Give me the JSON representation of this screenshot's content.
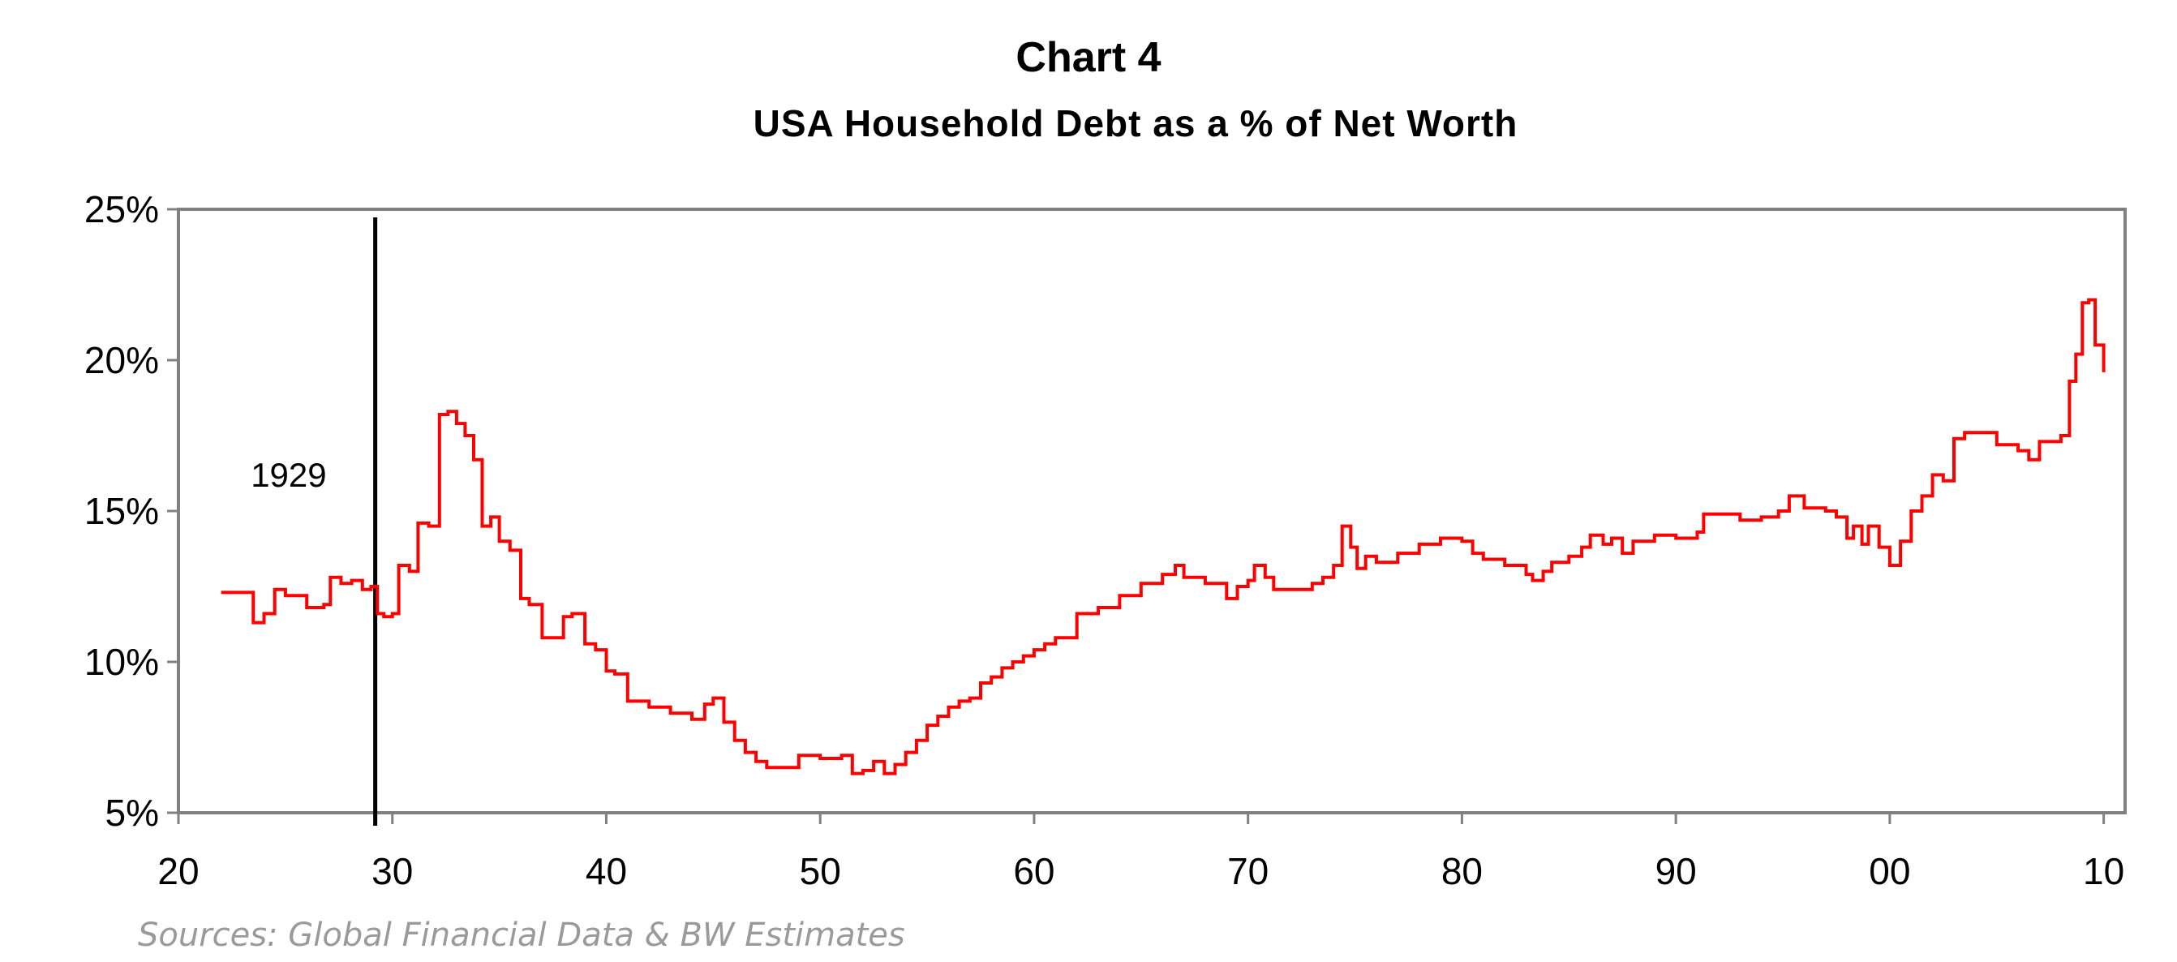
{
  "chart_data": {
    "type": "line",
    "title": "Chart 4",
    "subtitle": "USA Household Debt as a % of Net Worth",
    "xlabel": "",
    "ylabel": "",
    "xlim": [
      1920,
      2011
    ],
    "ylim": [
      5,
      25
    ],
    "x_ticks": [
      1920,
      1930,
      1940,
      1950,
      1960,
      1970,
      1980,
      1990,
      2000,
      2010
    ],
    "x_tick_labels": [
      "20",
      "30",
      "40",
      "50",
      "60",
      "70",
      "80",
      "90",
      "00",
      "10"
    ],
    "y_ticks": [
      5,
      10,
      15,
      20,
      25
    ],
    "y_tick_labels": [
      "5%",
      "10%",
      "15%",
      "20%",
      "25%"
    ],
    "grid": false,
    "legend": "none",
    "annotations": [
      {
        "text": "1929",
        "x": 1929.2
      }
    ],
    "source": "Sources: Global Financial Data & BW Estimates",
    "colors": {
      "series": "#ff0000",
      "axis": "#808080",
      "marker_line": "#000000"
    },
    "series": [
      {
        "x": [
          1922.0,
          1923.0,
          1923.5,
          1924.0,
          1924.5,
          1925.0,
          1926.0,
          1926.8,
          1927.1,
          1927.6,
          1928.1,
          1928.6,
          1929.0,
          1929.3,
          1929.6,
          1930.0,
          1930.3,
          1930.8,
          1931.2,
          1931.7,
          1932.2,
          1932.6,
          1933.0,
          1933.4,
          1933.8,
          1934.2,
          1934.6,
          1935.0,
          1935.5,
          1936.0,
          1936.4,
          1937.0,
          1937.5,
          1938.0,
          1938.4,
          1939.0,
          1939.5,
          1940.0,
          1940.4,
          1941.0,
          1942.0,
          1943.0,
          1944.0,
          1944.6,
          1945.0,
          1945.5,
          1946.0,
          1946.5,
          1947.0,
          1947.5,
          1948.0,
          1948.5,
          1949.0,
          1949.5,
          1950.0,
          1950.5,
          1951.0,
          1951.5,
          1952.0,
          1952.5,
          1953.0,
          1953.5,
          1954.0,
          1954.5,
          1955.0,
          1955.5,
          1956.0,
          1956.5,
          1957.0,
          1957.5,
          1958.0,
          1958.5,
          1959.0,
          1959.5,
          1960.0,
          1960.5,
          1961.0,
          1962.0,
          1963.0,
          1964.0,
          1965.0,
          1966.0,
          1966.6,
          1967.0,
          1968.0,
          1969.0,
          1969.5,
          1970.0,
          1970.3,
          1970.8,
          1971.2,
          1972.0,
          1973.0,
          1973.5,
          1974.0,
          1974.4,
          1974.8,
          1975.1,
          1975.5,
          1976.0,
          1977.0,
          1978.0,
          1979.0,
          1980.0,
          1980.5,
          1981.0,
          1982.0,
          1983.0,
          1983.3,
          1983.8,
          1984.2,
          1985.0,
          1985.6,
          1986.0,
          1986.6,
          1987.0,
          1987.5,
          1988.0,
          1989.0,
          1990.0,
          1991.0,
          1991.3,
          1992.0,
          1993.0,
          1994.0,
          1994.8,
          1995.3,
          1996.0,
          1997.0,
          1997.5,
          1998.0,
          1998.3,
          1998.7,
          1999.0,
          1999.5,
          2000.0,
          2000.5,
          2001.0,
          2001.5,
          2002.0,
          2002.5,
          2003.0,
          2003.5,
          2004.0,
          2005.0,
          2006.0,
          2006.5,
          2007.0,
          2007.5,
          2008.0,
          2008.4,
          2008.7,
          2009.0,
          2009.3,
          2009.6,
          2010.0
        ],
        "y": [
          12.3,
          12.3,
          11.3,
          11.6,
          12.4,
          12.2,
          11.8,
          11.9,
          12.8,
          12.6,
          12.7,
          12.4,
          12.5,
          11.6,
          11.5,
          11.6,
          13.2,
          13.0,
          14.6,
          14.5,
          18.2,
          18.3,
          17.9,
          17.5,
          16.7,
          14.5,
          14.8,
          14.0,
          13.7,
          12.1,
          11.9,
          10.8,
          10.8,
          11.5,
          11.6,
          10.6,
          10.4,
          9.7,
          9.6,
          8.7,
          8.5,
          8.3,
          8.1,
          8.6,
          8.8,
          8.0,
          7.4,
          7.0,
          6.7,
          6.5,
          6.5,
          6.5,
          6.9,
          6.9,
          6.8,
          6.8,
          6.9,
          6.3,
          6.4,
          6.7,
          6.3,
          6.6,
          7.0,
          7.4,
          7.9,
          8.2,
          8.5,
          8.7,
          8.8,
          9.3,
          9.5,
          9.8,
          10.0,
          10.2,
          10.4,
          10.6,
          10.8,
          11.6,
          11.8,
          12.2,
          12.6,
          12.9,
          13.2,
          12.8,
          12.6,
          12.1,
          12.5,
          12.7,
          13.2,
          12.8,
          12.4,
          12.4,
          12.6,
          12.8,
          13.2,
          14.5,
          13.8,
          13.1,
          13.5,
          13.3,
          13.6,
          13.9,
          14.1,
          14.0,
          13.6,
          13.4,
          13.2,
          12.9,
          12.7,
          13.0,
          13.3,
          13.5,
          13.8,
          14.2,
          13.9,
          14.1,
          13.6,
          14.0,
          14.2,
          14.1,
          14.3,
          14.9,
          14.9,
          14.7,
          14.8,
          15.0,
          15.5,
          15.1,
          15.0,
          14.8,
          14.1,
          14.5,
          13.9,
          14.5,
          13.8,
          13.2,
          14.0,
          15.0,
          15.5,
          16.2,
          16.0,
          17.4,
          17.6,
          17.6,
          17.2,
          17.0,
          16.7,
          17.3,
          17.3,
          17.5,
          19.3,
          20.2,
          21.9,
          22.0,
          20.5,
          19.6
        ]
      }
    ]
  }
}
